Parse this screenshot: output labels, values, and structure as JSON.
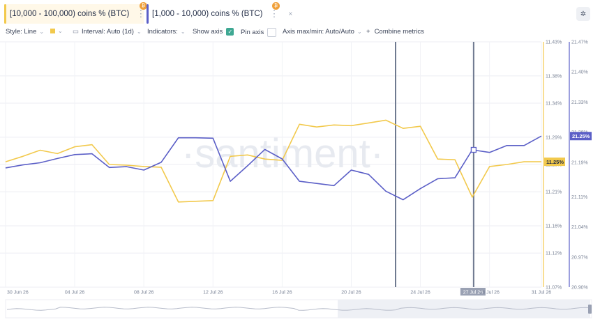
{
  "tabs": [
    {
      "label": "[10,000 - 100,000) coins % (BTC)",
      "color": "#f2c94c",
      "bg": "#fff8e8",
      "badge": "₿"
    },
    {
      "label": "[1,000 - 10,000) coins % (BTC)",
      "color": "#5b5fc7",
      "bg": "#ffffff",
      "badge": "₿"
    }
  ],
  "tab_menu_icon": "⋮",
  "tab_close_icon": "×",
  "settings_icon": "✲",
  "toolbar": {
    "style": "Style: Line",
    "interval": "Interval: Auto (1d)",
    "indicators": "Indicators:",
    "show_axis": "Show axis",
    "pin_axis": "Pin axis",
    "axis_maxmin": "Axis max/min: Auto/Auto",
    "combine": "Combine metrics",
    "combine_prefix": "+",
    "chevron": "⌄",
    "checkmark": "✓"
  },
  "watermark": "·santiment·",
  "chart_data": {
    "type": "line",
    "x": [
      "30 Jun 26",
      "01 Jul 26",
      "02 Jul 26",
      "03 Jul 26",
      "04 Jul 26",
      "05 Jul 26",
      "06 Jul 26",
      "07 Jul 26",
      "08 Jul 26",
      "09 Jul 26",
      "10 Jul 26",
      "11 Jul 26",
      "12 Jul 26",
      "13 Jul 26",
      "14 Jul 26",
      "15 Jul 26",
      "16 Jul 26",
      "17 Jul 26",
      "18 Jul 26",
      "19 Jul 26",
      "20 Jul 26",
      "21 Jul 26",
      "22 Jul 26",
      "23 Jul 26",
      "24 Jul 26",
      "25 Jul 26",
      "26 Jul 26",
      "27 Jul 26",
      "28 Jul 26",
      "29 Jul 26",
      "30 Jul 26",
      "31 Jul 26"
    ],
    "x_tick_labels": [
      "30 Jun 26",
      "04 Jul 26",
      "08 Jul 26",
      "12 Jul 26",
      "16 Jul 26",
      "20 Jul 26",
      "24 Jul 26",
      "27 Jul 26",
      "28 Jul 26",
      "31 Jul 26"
    ],
    "highlighted_x": "27 Jul 26",
    "series": [
      {
        "name": "[10,000 - 100,000) coins % (BTC)",
        "color": "#f2c94c",
        "axis": "left",
        "values": [
          11.254,
          11.262,
          11.271,
          11.266,
          11.276,
          11.279,
          11.25,
          11.249,
          11.247,
          11.246,
          11.195,
          11.196,
          11.197,
          11.262,
          11.264,
          11.258,
          11.256,
          11.309,
          11.305,
          11.308,
          11.307,
          11.311,
          11.315,
          11.303,
          11.306,
          11.258,
          11.257,
          11.202,
          11.247,
          11.25,
          11.254,
          11.254
        ],
        "last_label": "11.25%"
      },
      {
        "name": "[1,000 - 10,000) coins % (BTC)",
        "color": "#5b5fc7",
        "axis": "right",
        "values": [
          21.177,
          21.184,
          21.189,
          21.199,
          21.208,
          21.21,
          21.178,
          21.18,
          21.172,
          21.19,
          21.247,
          21.247,
          21.246,
          21.146,
          21.182,
          21.22,
          21.198,
          21.146,
          21.141,
          21.136,
          21.172,
          21.162,
          21.123,
          21.103,
          21.129,
          21.152,
          21.154,
          21.219,
          21.213,
          21.229,
          21.229,
          21.251
        ],
        "last_label": "21.25%"
      }
    ],
    "y_left": {
      "ticks": [
        11.07,
        11.12,
        11.16,
        11.21,
        11.25,
        11.29,
        11.34,
        11.38,
        11.43
      ],
      "tick_labels": [
        "11.07%",
        "11.12%",
        "11.16%",
        "11.21%",
        "11.25%",
        "11.29%",
        "11.34%",
        "11.38%",
        "11.43%"
      ],
      "range": [
        11.07,
        11.43
      ]
    },
    "y_right": {
      "ticks": [
        20.9,
        20.97,
        21.04,
        21.11,
        21.19,
        21.26,
        21.33,
        21.4,
        21.47
      ],
      "tick_labels": [
        "20.90%",
        "20.97%",
        "21.04%",
        "21.11%",
        "21.19%",
        "21.26%",
        "21.33%",
        "21.40%",
        "21.47%"
      ],
      "range": [
        20.9,
        21.47
      ]
    },
    "grid": true
  }
}
